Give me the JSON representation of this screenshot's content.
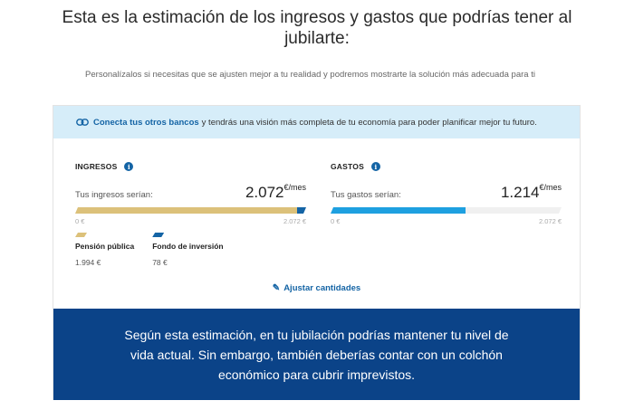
{
  "header": {
    "title": "Esta es la estimación de los ingresos y gastos que podrías tener al jubilarte:",
    "subtitle": "Personalízalos si necesitas que se ajusten mejor a tu realidad y podremos mostrarte la solución más adecuada para ti"
  },
  "banner": {
    "link_text": "Conecta tus otros bancos",
    "rest_text": "y tendrás una visión más completa de tu economía para poder planificar mejor tu futuro."
  },
  "ingresos": {
    "heading": "INGRESOS",
    "label": "Tus ingresos serían:",
    "amount": "2.072",
    "unit": "€/mes",
    "scale_min": "0  €",
    "scale_max": "2.072  €",
    "segments": [
      {
        "name": "Pensión pública",
        "value": 1994,
        "color": "#dcc17a"
      },
      {
        "name": "Fondo de inversión",
        "value": 78,
        "color": "#1464a5"
      }
    ],
    "total": 2072
  },
  "gastos": {
    "heading": "GASTOS",
    "label": "Tus gastos serían:",
    "amount": "1.214",
    "unit": "€/mes",
    "scale_min": "0  €",
    "scale_max": "2.072  €",
    "value": 1214,
    "max": 2072,
    "color": "#1ea0e0"
  },
  "legend": [
    {
      "name": "Pensión pública",
      "value": "1.994  €",
      "color": "#dcc17a"
    },
    {
      "name": "Fondo de inversión",
      "value": "78  €",
      "color": "#1464a5"
    }
  ],
  "adjust_label": "Ajustar cantidades",
  "footer_text": "Según esta estimación, en tu jubilación podrías mantener tu nivel de vida actual. Sin embargo, también deberías contar con un colchón económico para cubrir imprevistos."
}
